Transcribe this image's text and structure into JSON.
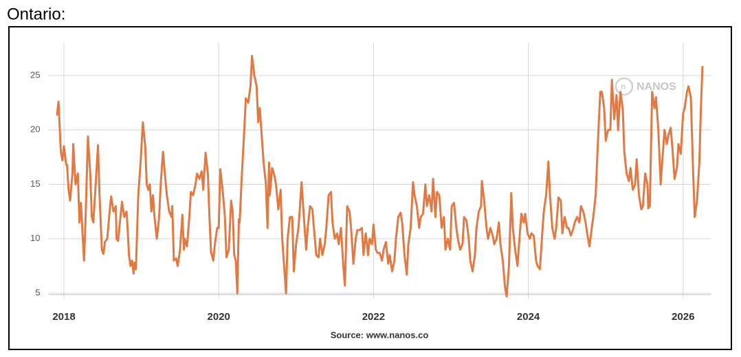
{
  "chart_data": {
    "type": "line",
    "title": "Ontario:",
    "source": "Source: www.nanos.co",
    "watermark": "NANOS",
    "color": "#e07a45",
    "grid": true,
    "xlim": [
      2017.8,
      2026.36
    ],
    "xticks": [
      2018,
      2020,
      2022,
      2024,
      2026
    ],
    "ylim": [
      4.5,
      28
    ],
    "yticks": [
      5,
      10,
      15,
      20,
      25
    ],
    "x": [
      2017.91,
      2017.93,
      2017.96,
      2017.98,
      2018.0,
      2018.03,
      2018.04,
      2018.06,
      2018.08,
      2018.11,
      2018.12,
      2018.15,
      2018.18,
      2018.2,
      2018.22,
      2018.24,
      2018.26,
      2018.28,
      2018.31,
      2018.34,
      2018.36,
      2018.38,
      2018.41,
      2018.44,
      2018.46,
      2018.49,
      2018.51,
      2018.53,
      2018.56,
      2018.59,
      2018.61,
      2018.64,
      2018.67,
      2018.68,
      2018.7,
      2018.73,
      2018.75,
      2018.78,
      2018.81,
      2018.83,
      2018.84,
      2018.86,
      2018.88,
      2018.9,
      2018.91,
      2018.93,
      2018.96,
      2018.99,
      2019.02,
      2019.05,
      2019.07,
      2019.09,
      2019.11,
      2019.13,
      2019.15,
      2019.17,
      2019.2,
      2019.23,
      2019.25,
      2019.28,
      2019.31,
      2019.33,
      2019.36,
      2019.39,
      2019.4,
      2019.42,
      2019.45,
      2019.47,
      2019.5,
      2019.53,
      2019.55,
      2019.56,
      2019.59,
      2019.62,
      2019.64,
      2019.67,
      2019.7,
      2019.72,
      2019.75,
      2019.78,
      2019.8,
      2019.83,
      2019.86,
      2019.88,
      2019.9,
      2019.93,
      2019.95,
      2019.98,
      2020.0,
      2020.02,
      2020.05,
      2020.08,
      2020.1,
      2020.13,
      2020.16,
      2020.18,
      2020.2,
      2020.22,
      2020.24,
      2020.26,
      2020.27,
      2020.3,
      2020.33,
      2020.35,
      2020.38,
      2020.41,
      2020.43,
      2020.46,
      2020.49,
      2020.51,
      2020.53,
      2020.56,
      2020.58,
      2020.61,
      2020.63,
      2020.65,
      2020.66,
      2020.69,
      2020.72,
      2020.74,
      2020.77,
      2020.8,
      2020.82,
      2020.84,
      2020.87,
      2020.89,
      2020.92,
      2020.95,
      2020.97,
      2021.0,
      2021.03,
      2021.05,
      2021.07,
      2021.1,
      2021.13,
      2021.15,
      2021.18,
      2021.21,
      2021.23,
      2021.26,
      2021.29,
      2021.31,
      2021.34,
      2021.37,
      2021.39,
      2021.42,
      2021.45,
      2021.47,
      2021.5,
      2021.53,
      2021.55,
      2021.58,
      2021.61,
      2021.63,
      2021.66,
      2021.69,
      2021.71,
      2021.74,
      2021.77,
      2021.79,
      2021.82,
      2021.85,
      2021.87,
      2021.9,
      2021.93,
      2021.95,
      2021.98,
      2022.0,
      2022.03,
      2022.05,
      2022.08,
      2022.11,
      2022.13,
      2022.16,
      2022.19,
      2022.21,
      2022.24,
      2022.27,
      2022.29,
      2022.32,
      2022.35,
      2022.37,
      2022.4,
      2022.43,
      2022.45,
      2022.48,
      2022.51,
      2022.53,
      2022.56,
      2022.59,
      2022.61,
      2022.64,
      2022.67,
      2022.69,
      2022.72,
      2022.75,
      2022.77,
      2022.8,
      2022.82,
      2022.85,
      2022.88,
      2022.91,
      2022.93,
      2022.96,
      2022.99,
      2023.01,
      2023.04,
      2023.07,
      2023.09,
      2023.12,
      2023.15,
      2023.17,
      2023.2,
      2023.23,
      2023.25,
      2023.28,
      2023.31,
      2023.33,
      2023.36,
      2023.39,
      2023.4,
      2023.43,
      2023.46,
      2023.48,
      2023.51,
      2023.54,
      2023.56,
      2023.59,
      2023.62,
      2023.64,
      2023.67,
      2023.7,
      2023.72,
      2023.75,
      2023.78,
      2023.8,
      2023.83,
      2023.86,
      2023.88,
      2023.91,
      2023.94,
      2023.96,
      2023.99,
      2024.02,
      2024.04,
      2024.07,
      2024.1,
      2024.12,
      2024.15,
      2024.18,
      2024.2,
      2024.23,
      2024.26,
      2024.28,
      2024.31,
      2024.34,
      2024.36,
      2024.39,
      2024.42,
      2024.44,
      2024.47,
      2024.5,
      2024.52,
      2024.55,
      2024.58,
      2024.6,
      2024.63,
      2024.66,
      2024.68,
      2024.71,
      2024.74,
      2024.76,
      2024.79,
      2024.82,
      2024.84,
      2024.87,
      2024.9,
      2024.93,
      2024.95,
      2024.98,
      2025.0,
      2025.03,
      2025.06,
      2025.08,
      2025.11,
      2025.14,
      2025.16,
      2025.19,
      2025.22,
      2025.24,
      2025.27,
      2025.3,
      2025.32,
      2025.35,
      2025.38,
      2025.4,
      2025.43,
      2025.46,
      2025.48,
      2025.51,
      2025.54,
      2025.55,
      2025.57,
      2025.6,
      2025.63,
      2025.65,
      2025.68,
      2025.71,
      2025.73,
      2025.76,
      2025.79,
      2025.81,
      2025.84,
      2025.86,
      2025.89,
      2025.92,
      2025.94,
      2025.97,
      2026.0,
      2026.02,
      2026.05,
      2026.07,
      2026.1,
      2026.13,
      2026.15,
      2026.18,
      2026.21,
      2026.23,
      2026.25
    ],
    "values": [
      21.4,
      22.6,
      18,
      17.2,
      18.5,
      16.8,
      16.8,
      14.5,
      13.5,
      16,
      18.7,
      15,
      16,
      11.5,
      13.3,
      10.5,
      8,
      12,
      19.4,
      16,
      12,
      11.5,
      15,
      18.6,
      14,
      9,
      8.6,
      9.7,
      10,
      12.5,
      13.9,
      12.5,
      13,
      10,
      9.8,
      12,
      13.4,
      12,
      12.5,
      10,
      8.5,
      7.5,
      8,
      6.8,
      7.8,
      7.2,
      14,
      17,
      20.7,
      18.5,
      15,
      14.5,
      15,
      12.5,
      14,
      12,
      10,
      12,
      15,
      18,
      15.5,
      14,
      12.5,
      12,
      13,
      8,
      8.2,
      7.5,
      9,
      12.2,
      9,
      10,
      9.3,
      12,
      14.3,
      14,
      15,
      16,
      15.5,
      16.2,
      14.5,
      17.9,
      16,
      12,
      8.8,
      8,
      9.5,
      11,
      11,
      16.4,
      14.5,
      12,
      8.3,
      9,
      13.5,
      12.5,
      8.5,
      8,
      5,
      11.8,
      11.5,
      16,
      20,
      22.9,
      22.5,
      24,
      26.8,
      25,
      24,
      20.7,
      22,
      19,
      17,
      15,
      11,
      17,
      14,
      16.5,
      15.8,
      15,
      12.7,
      14.5,
      10,
      8,
      5,
      10,
      12,
      12,
      7,
      9.5,
      11,
      13,
      15.2,
      12,
      9,
      11,
      13,
      12.7,
      11,
      8.5,
      8.3,
      10,
      8.5,
      9.5,
      11,
      14,
      14.3,
      11.5,
      10,
      10.5,
      9.5,
      11,
      7.5,
      5.7,
      13,
      12.5,
      11,
      7.7,
      10,
      10.8,
      10.8,
      11,
      8.5,
      10.5,
      8.5,
      10,
      9.5,
      11.3,
      9,
      8.7,
      8.7,
      8,
      9,
      9.7,
      7.7,
      8.5,
      7,
      8,
      10,
      12,
      12.4,
      11.5,
      8.5,
      6.7,
      9.5,
      11,
      15.2,
      14,
      13,
      11,
      12,
      12.3,
      15,
      13,
      14,
      12.5,
      15.5,
      12,
      14.3,
      14,
      11,
      12,
      9,
      10,
      9,
      13,
      13.3,
      11,
      10,
      9,
      9.5,
      12,
      11.7,
      10,
      8,
      7,
      8.5,
      11,
      12.5,
      13,
      15.3,
      13.5,
      11,
      10,
      11,
      10.3,
      9.5,
      10,
      11.5,
      9.5,
      8,
      5.5,
      4.7,
      7.5,
      14.2,
      11,
      9,
      7.5,
      9.5,
      12.3,
      11.5,
      12.3,
      10.5,
      10,
      10.5,
      10.3,
      8,
      7.5,
      7.2,
      10.5,
      12.5,
      14,
      17.1,
      14,
      11,
      10,
      11,
      13.8,
      13.5,
      10.5,
      12,
      11,
      11,
      10.3,
      10.9,
      11.5,
      12,
      11.5,
      13,
      12.5,
      11.5,
      10.5,
      9.3,
      11,
      12,
      14,
      19,
      23.5,
      23.5,
      22,
      19,
      20,
      20,
      24.6,
      21,
      23.2,
      20,
      23.5,
      22,
      18,
      16,
      15.3,
      16.5,
      14.5,
      15,
      17.3,
      14,
      12.7,
      13,
      16,
      15,
      12.8,
      13,
      23.5,
      22,
      23,
      20,
      15,
      17,
      20,
      18.7,
      19.5,
      20.2,
      18.5,
      15.5,
      16.5,
      18.7,
      17.8,
      21.5,
      22,
      23.5,
      24,
      23,
      16,
      12,
      13.5,
      17,
      22,
      25.8
    ]
  }
}
